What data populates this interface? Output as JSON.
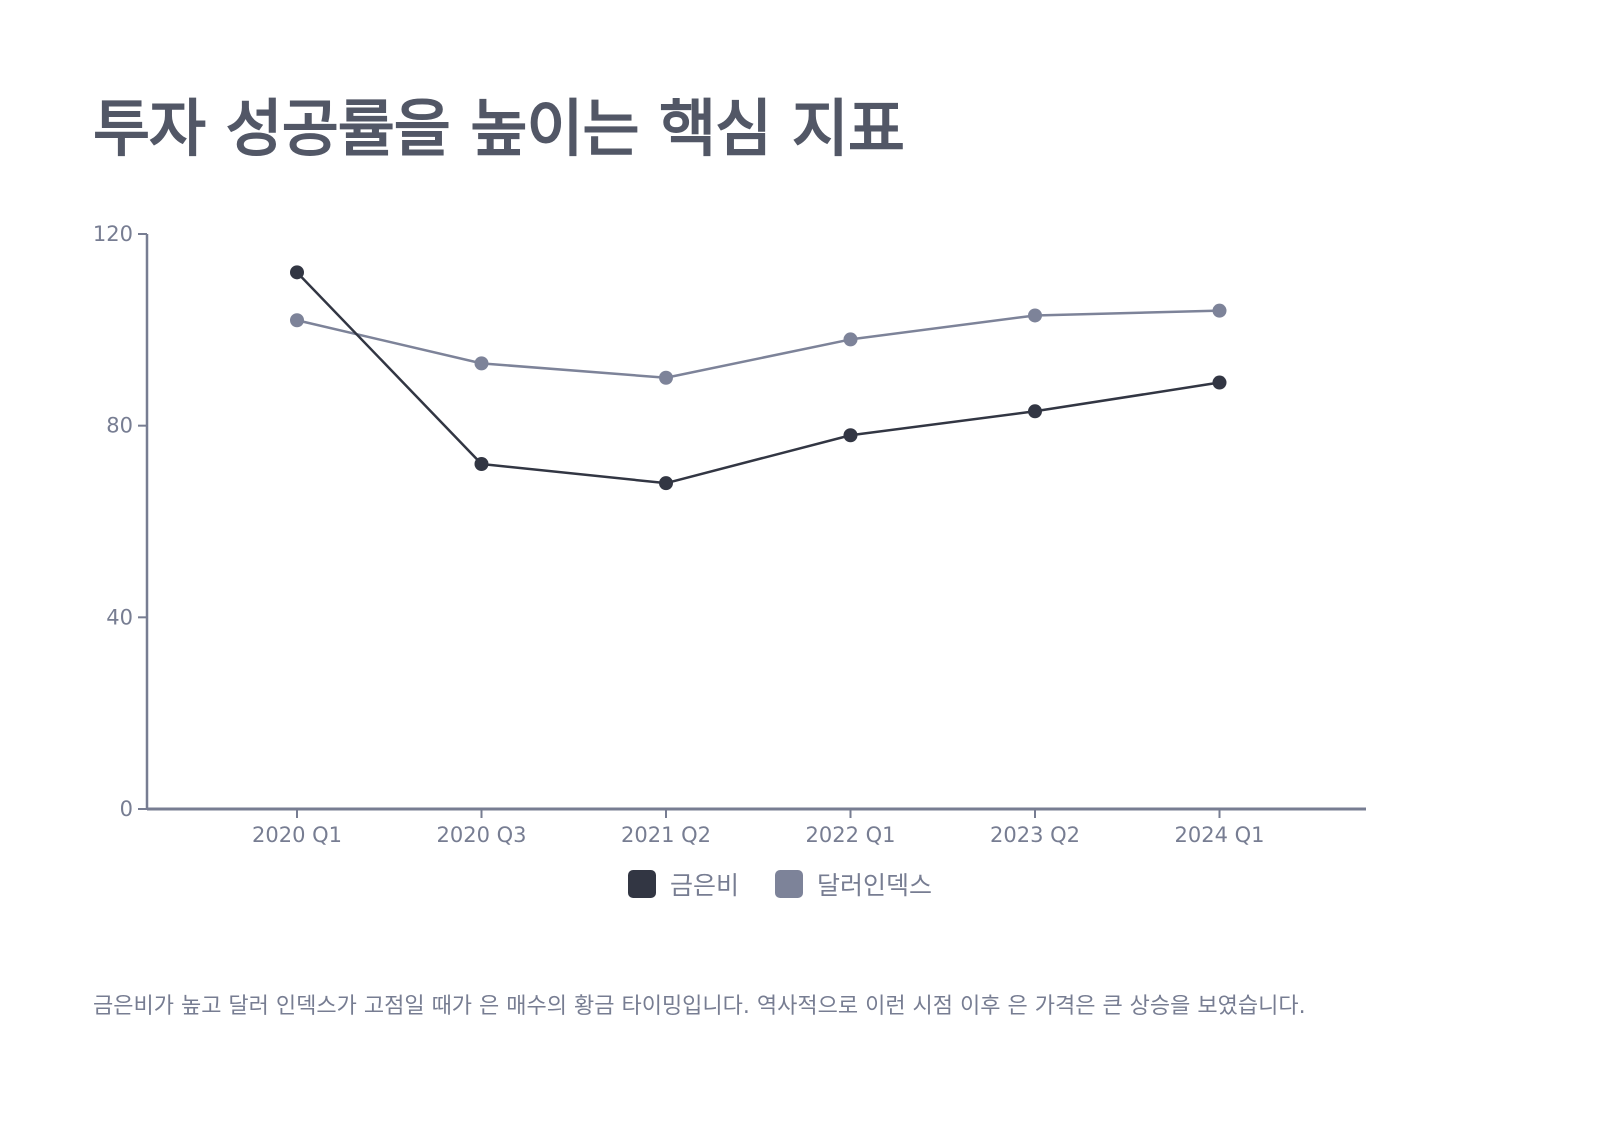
{
  "title": "투자 성공률을 높이는 핵심 지표",
  "caption": "금은비가 높고 달러 인덱스가 고점일 때가 은 매수의 황금 타이밍입니다. 역사적으로 이런 시점 이후 은 가격은 큰 상승을 보였습니다.",
  "colors": {
    "axis": "#777d92",
    "series_1": "#323643",
    "series_2": "#7d8399"
  },
  "chart_data": {
    "type": "line",
    "categories": [
      "2020 Q1",
      "2020 Q3",
      "2021 Q2",
      "2022 Q1",
      "2023 Q2",
      "2024 Q1"
    ],
    "series": [
      {
        "name": "금은비",
        "values": [
          112,
          72,
          68,
          78,
          83,
          89
        ]
      },
      {
        "name": "달러인덱스",
        "values": [
          102,
          93,
          90,
          98,
          103,
          104
        ]
      }
    ],
    "ylim": [
      0,
      120
    ],
    "yticks": [
      "0",
      "40",
      "80",
      "120"
    ],
    "grid": false,
    "legend": "bottom-center"
  }
}
